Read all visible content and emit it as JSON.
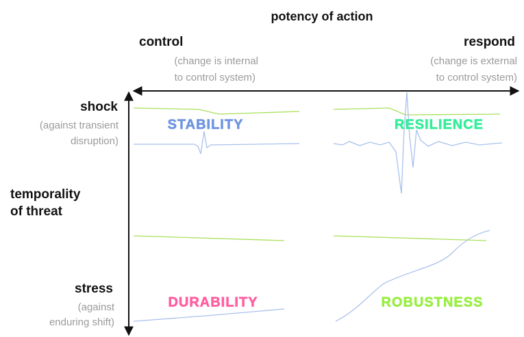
{
  "title": "potency of action",
  "x_axis": {
    "left": {
      "label": "control",
      "note": [
        "(change is internal",
        "to control system)"
      ]
    },
    "right": {
      "label": "respond",
      "note": [
        "(change is external",
        "to control system)"
      ]
    }
  },
  "y_axis": {
    "label": [
      "temporality",
      "of threat"
    ],
    "top": {
      "label": "shock",
      "note": [
        "(against transient",
        "disruption)"
      ]
    },
    "bottom": {
      "label": "stress",
      "note": [
        "(against",
        "enduring shift)"
      ]
    }
  },
  "quadrants": [
    {
      "label": "STABILITY",
      "color": "#6f95e0"
    },
    {
      "label": "RESILIENCE",
      "color": "#33ee99"
    },
    {
      "label": "DURABILITY",
      "color": "#ff5fa0"
    },
    {
      "label": "ROBUSTNESS",
      "color": "#99ee44"
    }
  ]
}
